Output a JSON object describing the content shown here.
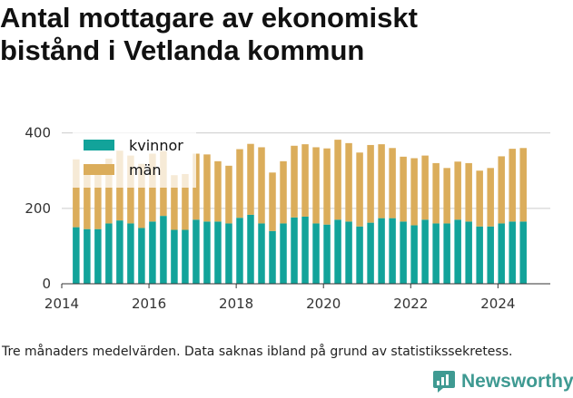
{
  "title_line1": "Antal mottagare av ekonomiskt",
  "title_line2": "bistånd i Vetlanda kommun",
  "footnote": "Tre månaders medelvärden. Data saknas ibland på grund av statistikssekretess.",
  "brand": "Newsworthy",
  "colors": {
    "kvinnor": "#12a39a",
    "man": "#dbad5b",
    "axis": "#333333",
    "grid": "#cccccc"
  },
  "chart_data": {
    "type": "bar",
    "stacked": true,
    "title": "Antal mottagare av ekonomiskt bistånd i Vetlanda kommun",
    "xlabel": "",
    "ylabel": "",
    "xlim": [
      2014.0,
      2025.2
    ],
    "ylim": [
      0,
      440
    ],
    "yticks": [
      0,
      200,
      400
    ],
    "xticks": [
      2014,
      2016,
      2018,
      2020,
      2022,
      2024
    ],
    "legend": "top-left",
    "x": [
      2014.33,
      2014.58,
      2014.83,
      2015.08,
      2015.33,
      2015.58,
      2015.83,
      2016.08,
      2016.33,
      2016.58,
      2016.83,
      2017.08,
      2017.33,
      2017.58,
      2017.83,
      2018.08,
      2018.33,
      2018.58,
      2018.83,
      2019.08,
      2019.33,
      2019.58,
      2019.83,
      2020.08,
      2020.33,
      2020.58,
      2020.83,
      2021.08,
      2021.33,
      2021.58,
      2021.83,
      2022.08,
      2022.33,
      2022.58,
      2022.83,
      2023.08,
      2023.33,
      2023.58,
      2023.83,
      2024.08,
      2024.33,
      2024.58
    ],
    "series": [
      {
        "name": "kvinnor",
        "values": [
          150,
          145,
          145,
          160,
          168,
          160,
          148,
          165,
          180,
          143,
          143,
          170,
          165,
          165,
          160,
          175,
          183,
          160,
          140,
          160,
          176,
          178,
          160,
          157,
          170,
          165,
          152,
          162,
          174,
          174,
          165,
          155,
          170,
          160,
          160,
          170,
          165,
          152,
          152,
          160,
          165,
          165
        ]
      },
      {
        "name": "män",
        "values": [
          180,
          172,
          162,
          172,
          185,
          180,
          170,
          180,
          172,
          145,
          148,
          175,
          178,
          160,
          153,
          182,
          188,
          202,
          155,
          165,
          190,
          192,
          202,
          202,
          212,
          208,
          196,
          206,
          196,
          186,
          172,
          178,
          170,
          160,
          147,
          154,
          155,
          148,
          155,
          178,
          193,
          195
        ]
      }
    ]
  }
}
